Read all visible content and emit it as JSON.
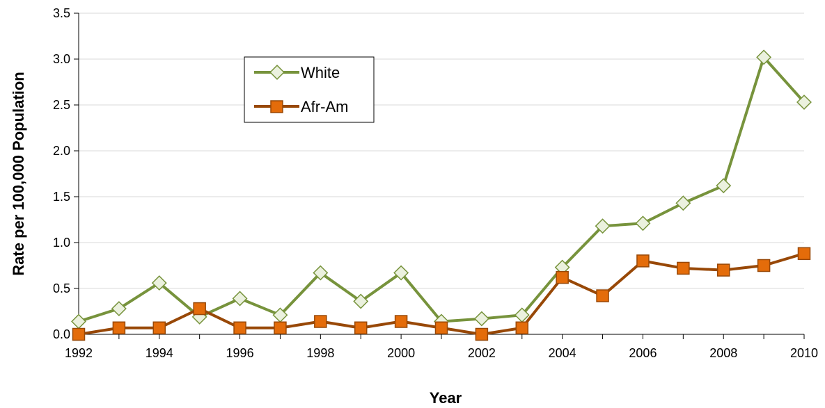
{
  "chart_data": {
    "type": "line",
    "x": [
      1992,
      1993,
      1994,
      1995,
      1996,
      1997,
      1998,
      1999,
      2000,
      2001,
      2002,
      2003,
      2004,
      2005,
      2006,
      2007,
      2008,
      2009,
      2010
    ],
    "x_tick_labels": [
      "1992",
      "1994",
      "1996",
      "1998",
      "2000",
      "2002",
      "2004",
      "2006",
      "2008",
      "2010"
    ],
    "y_tick_labels": [
      "0.0",
      "0.5",
      "1.0",
      "1.5",
      "2.0",
      "2.5",
      "3.0",
      "3.5"
    ],
    "series": [
      {
        "name": "White",
        "color": "#77933c",
        "marker": "diamond",
        "marker_fill": "#ebf1de",
        "values": [
          0.14,
          0.28,
          0.56,
          0.19,
          0.39,
          0.21,
          0.67,
          0.36,
          0.67,
          0.14,
          0.17,
          0.21,
          0.73,
          1.18,
          1.21,
          1.43,
          1.62,
          3.02,
          2.53
        ]
      },
      {
        "name": "Afr-Am",
        "color": "#984807",
        "marker": "square",
        "marker_fill": "#e46c0a",
        "values": [
          0.0,
          0.07,
          0.07,
          0.28,
          0.07,
          0.07,
          0.14,
          0.07,
          0.14,
          0.07,
          0.0,
          0.07,
          0.62,
          0.42,
          0.8,
          0.72,
          0.7,
          0.75,
          0.88
        ]
      }
    ],
    "title": "",
    "xlabel": "Year",
    "ylabel": "Rate per 100,000 Population",
    "xlim": [
      1992,
      2010
    ],
    "ylim": [
      0,
      3.5
    ],
    "grid": "horizontal",
    "legend_position": "upper-left-inside"
  }
}
